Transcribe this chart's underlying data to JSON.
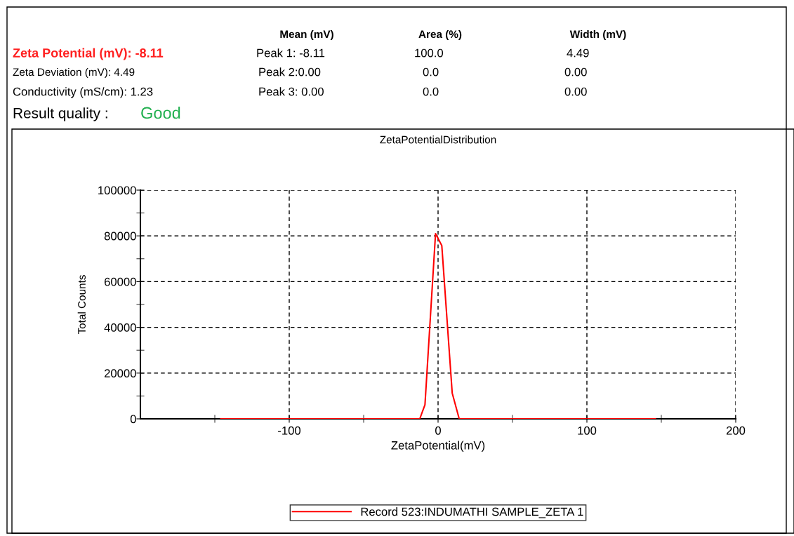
{
  "chart_data": {
    "type": "line",
    "title": "ZetaPotentialDistribution",
    "xlabel": "ZetaPotential(mV)",
    "ylabel": "Total Counts",
    "x": [
      -146,
      -12.3,
      -8.8,
      -1.7,
      2.5,
      9.5,
      14.2,
      146
    ],
    "series": [
      {
        "name": "Record 523:INDUMATHI SAMPLE_ZETA 1",
        "color": "#ff0000",
        "values": [
          0,
          0,
          6200,
          81000,
          75800,
          11300,
          0,
          0
        ]
      }
    ],
    "xlim": [
      -200,
      200
    ],
    "xticks": [
      -100,
      0,
      100,
      200,
      {
        "value": -150,
        "label": null
      },
      {
        "value": -50,
        "label": null
      },
      {
        "value": 50,
        "label": null
      },
      {
        "value": 150,
        "label": null
      }
    ],
    "ylim": [
      0,
      100000
    ],
    "yticks": [
      0,
      20000,
      40000,
      60000,
      80000,
      100000,
      {
        "value": 10000,
        "label": null
      },
      {
        "value": 30000,
        "label": null
      },
      {
        "value": 50000,
        "label": null
      },
      {
        "value": 70000,
        "label": null
      },
      {
        "value": 90000,
        "label": null
      }
    ],
    "grid": true,
    "line_style": "solid",
    "marker": "none",
    "legend": "bottom",
    "annotations": [
      "Mean (mV)",
      "Area (%)",
      "Width (mV)",
      "Zeta Potential (mV): -8.11",
      "Peak 1: -8.11",
      "100.0",
      "4.49",
      "Zeta Deviation (mV): 4.49",
      "Peak 2:0.00",
      "0.0",
      "0.00",
      "Conductivity (mS/cm): 1.23",
      "Peak 3: 0.00",
      "0.0",
      "0.00",
      "Result quality :",
      "Good"
    ]
  }
}
